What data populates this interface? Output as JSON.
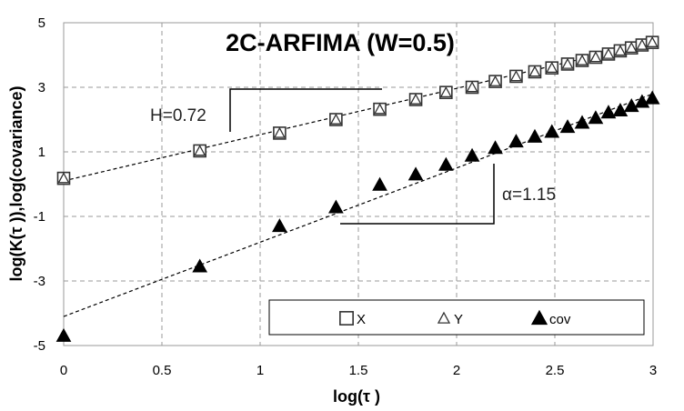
{
  "chart_data": {
    "type": "scatter",
    "title": "2C-ARFIMA (W=0.5)",
    "xlabel": "log(τ )",
    "ylabel": "log(K(τ )),log(covariance)",
    "xlim": [
      0,
      3
    ],
    "ylim": [
      -5,
      5
    ],
    "x_ticks": [
      "0",
      "0.5",
      "1",
      "1.5",
      "2",
      "2.5",
      "3"
    ],
    "y_ticks": [
      "5",
      "3",
      "1",
      "-1",
      "-3",
      "-5"
    ],
    "grid": true,
    "legend_position": "bottom-right",
    "series": [
      {
        "name": "X",
        "marker": "open-square",
        "x": [
          0,
          0.693,
          1.099,
          1.386,
          1.609,
          1.792,
          1.946,
          2.079,
          2.197,
          2.303,
          2.398,
          2.485,
          2.565,
          2.639,
          2.708,
          2.773,
          2.833,
          2.89,
          2.944,
          2.996
        ],
        "y": [
          0.18,
          1.03,
          1.58,
          2.0,
          2.32,
          2.62,
          2.84,
          3.0,
          3.18,
          3.34,
          3.48,
          3.6,
          3.72,
          3.83,
          3.93,
          4.03,
          4.13,
          4.22,
          4.31,
          4.39
        ]
      },
      {
        "name": "Y",
        "marker": "open-triangle",
        "x": [
          0,
          0.693,
          1.099,
          1.386,
          1.609,
          1.792,
          1.946,
          2.079,
          2.197,
          2.303,
          2.398,
          2.485,
          2.565,
          2.639,
          2.708,
          2.773,
          2.833,
          2.89,
          2.944,
          2.996
        ],
        "y": [
          0.18,
          1.03,
          1.58,
          2.0,
          2.32,
          2.62,
          2.84,
          3.0,
          3.18,
          3.34,
          3.48,
          3.6,
          3.72,
          3.83,
          3.93,
          4.03,
          4.13,
          4.22,
          4.31,
          4.39
        ]
      },
      {
        "name": "cov",
        "marker": "filled-triangle",
        "x": [
          0,
          0.693,
          1.099,
          1.386,
          1.609,
          1.792,
          1.946,
          2.079,
          2.197,
          2.303,
          2.398,
          2.485,
          2.565,
          2.639,
          2.708,
          2.773,
          2.833,
          2.89,
          2.944,
          2.996
        ],
        "y": [
          -4.7,
          -2.55,
          -1.3,
          -0.72,
          -0.02,
          0.3,
          0.6,
          0.88,
          1.12,
          1.32,
          1.47,
          1.62,
          1.77,
          1.9,
          2.05,
          2.22,
          2.28,
          2.42,
          2.55,
          2.66
        ]
      }
    ],
    "fit_lines": [
      {
        "series": "X,Y",
        "x": [
          0,
          3
        ],
        "y": [
          0.1,
          4.4
        ]
      },
      {
        "series": "cov",
        "x": [
          0,
          3
        ],
        "y": [
          -4.1,
          2.8
        ]
      }
    ],
    "annotations": [
      {
        "text": "H=0.72"
      },
      {
        "text": "α=1.15"
      }
    ]
  }
}
